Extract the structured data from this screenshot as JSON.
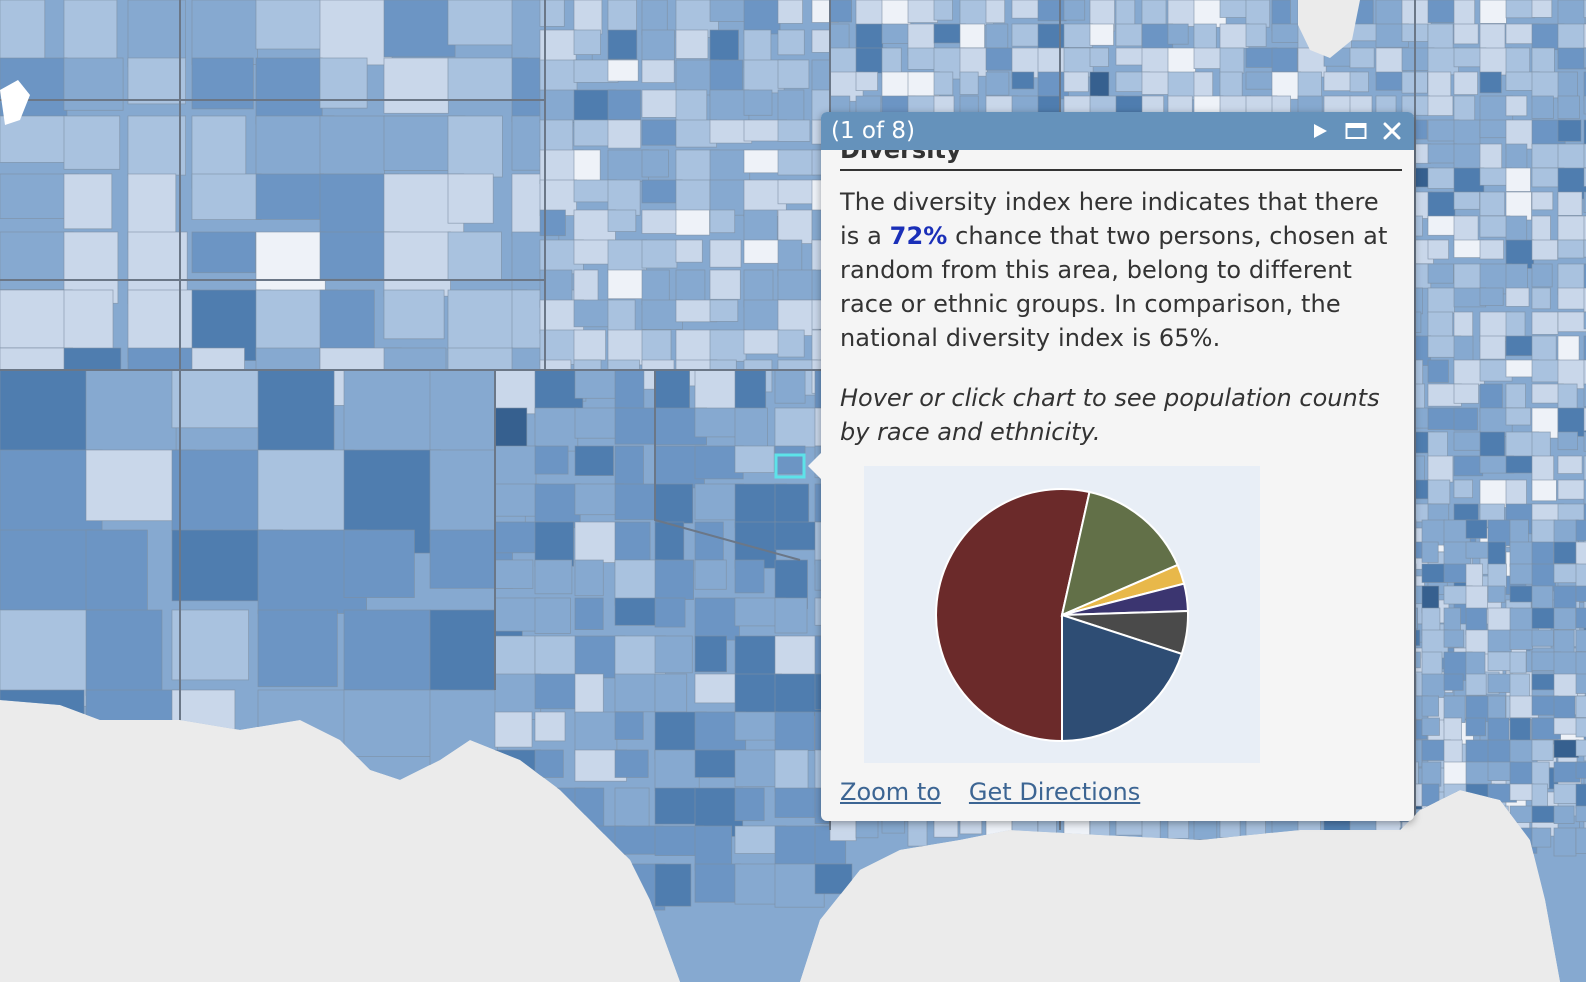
{
  "popup": {
    "pager": "(1 of 8)",
    "partial_heading": "Diversity",
    "description_before": "The diversity index here indicates that there is a ",
    "diversity_pct": "72%",
    "description_after": " chance that two persons, chosen at random from this area, belong to different race or ethnic groups. In comparison, the national diversity index is 65%.",
    "hint": "Hover or click chart to see population counts by race and ethnicity.",
    "actions": {
      "zoom": "Zoom to",
      "directions": "Get Directions"
    }
  },
  "colors": {
    "popup_header": "#6592bb",
    "highlight": "#5de3e9",
    "map_shades": [
      "#eef2f8",
      "#c9d7ea",
      "#a9c2df",
      "#86a9d0",
      "#6c95c4",
      "#4f7daf",
      "#36608f"
    ]
  },
  "chart_data": {
    "type": "pie",
    "slices": [
      {
        "value": 53.5,
        "color": "#6b2a2a"
      },
      {
        "value": 15.0,
        "color": "#627048"
      },
      {
        "value": 2.5,
        "color": "#e8b84a"
      },
      {
        "value": 3.5,
        "color": "#3b3570"
      },
      {
        "value": 5.5,
        "color": "#4a4a4a"
      },
      {
        "value": 20.0,
        "color": "#2e4d74"
      }
    ]
  }
}
